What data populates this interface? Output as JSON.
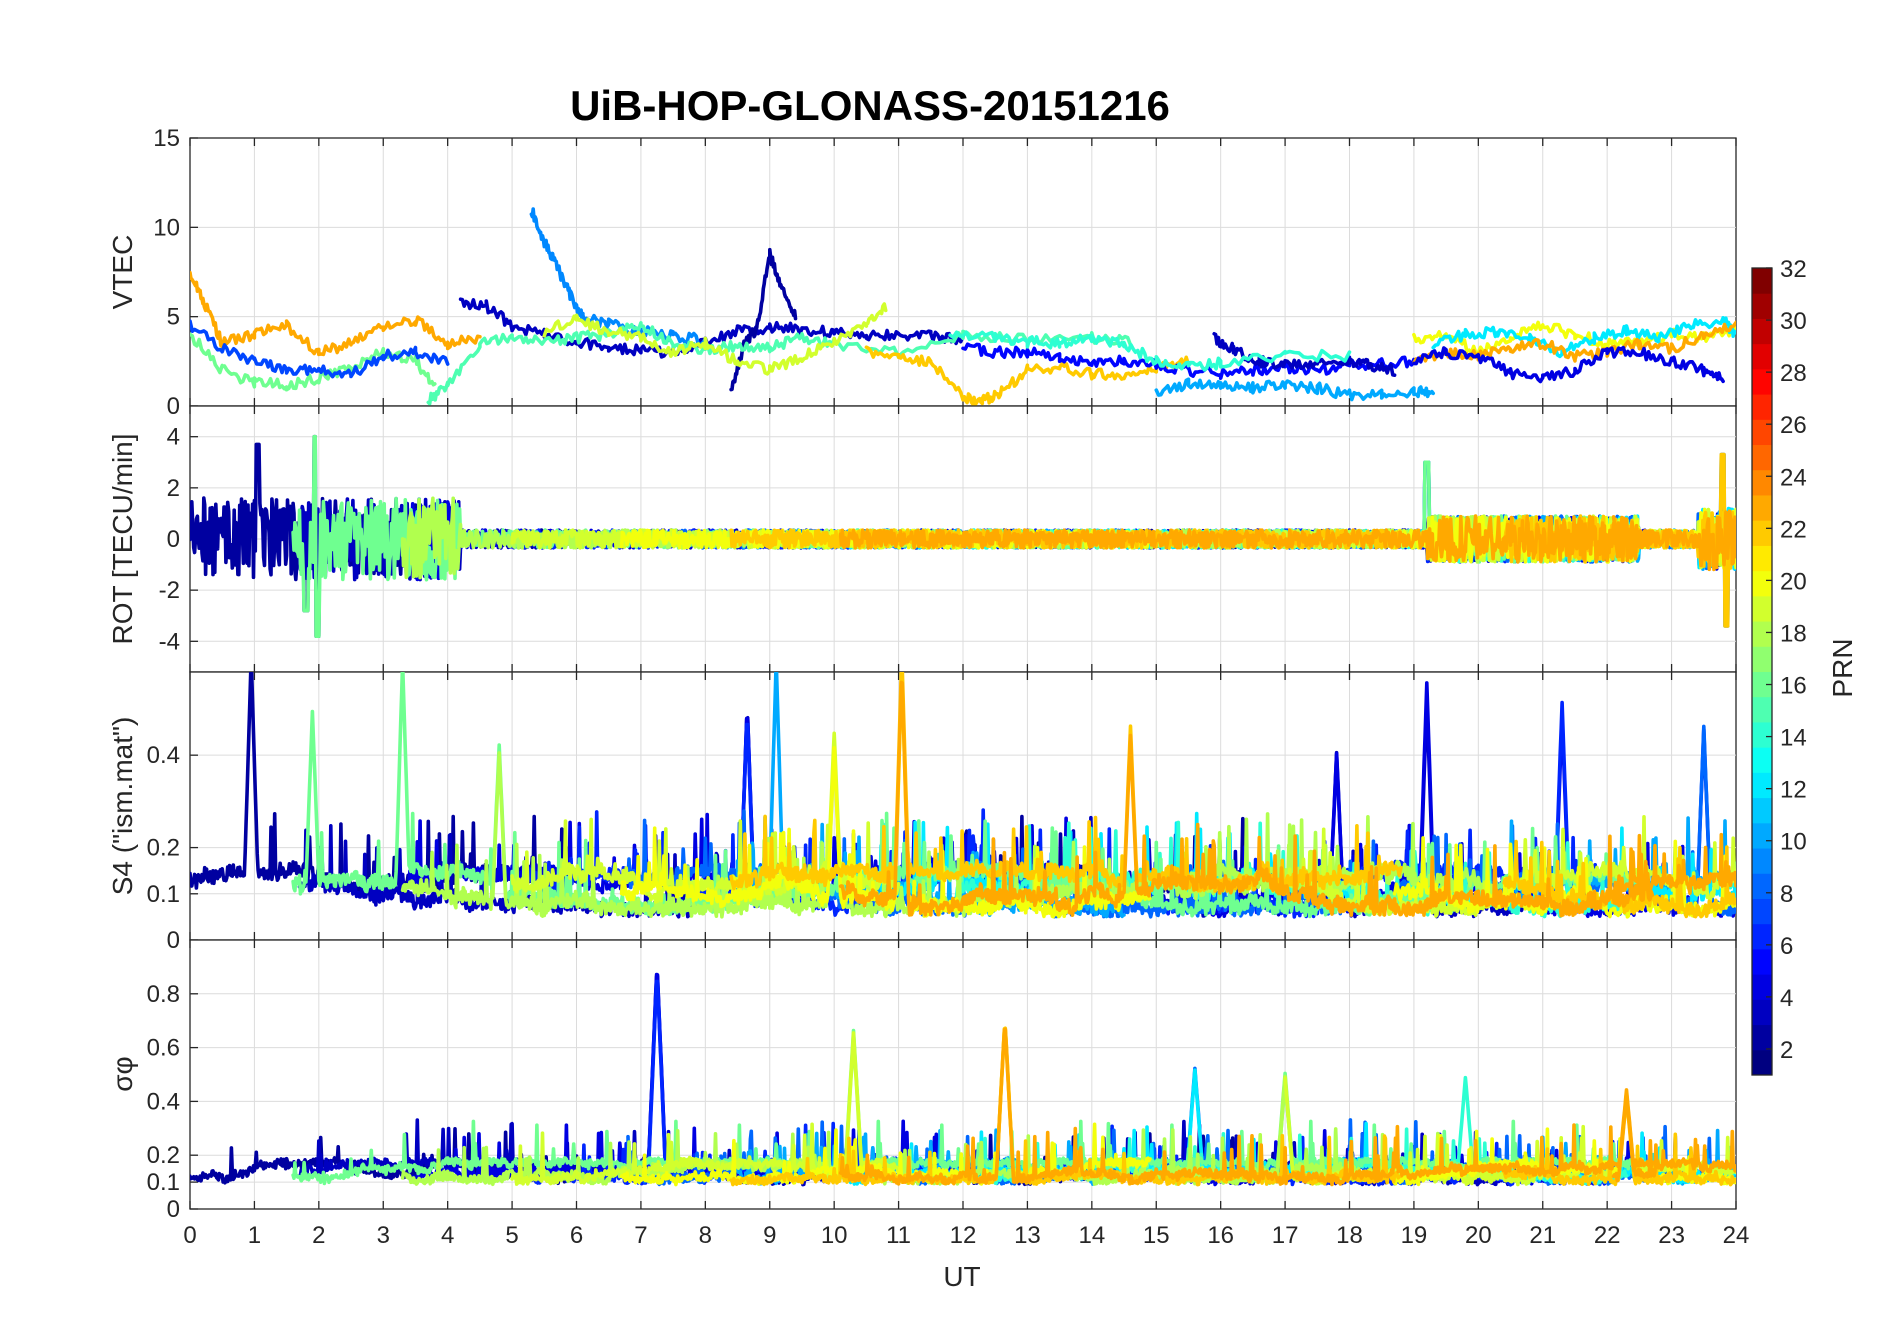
{
  "chart_data": {
    "type": "line",
    "title": "UiB-HOP-GLONASS-20151216",
    "xlabel": "UT",
    "xlim": [
      0,
      24
    ],
    "xticks": [
      "0",
      "1",
      "2",
      "3",
      "4",
      "5",
      "6",
      "7",
      "8",
      "9",
      "10",
      "11",
      "12",
      "13",
      "14",
      "15",
      "16",
      "17",
      "18",
      "19",
      "20",
      "21",
      "22",
      "23",
      "24"
    ],
    "colorbar": {
      "label": "PRN",
      "range": [
        1,
        32
      ],
      "ticks": [
        "2",
        "4",
        "6",
        "8",
        "10",
        "12",
        "14",
        "16",
        "18",
        "20",
        "22",
        "24",
        "26",
        "28",
        "30",
        "32"
      ],
      "colormap": "jet"
    },
    "panels": [
      {
        "id": "vtec",
        "ylabel": "VTEC",
        "ylim": [
          0,
          15
        ],
        "yticks": [
          "0",
          "5",
          "10",
          "15"
        ],
        "series": [
          {
            "prn": 3,
            "x": [
              4.2,
              4.6,
              5.0,
              5.5,
              6.0,
              6.5,
              7.0,
              7.5,
              8.0,
              8.5,
              9.0,
              9.5,
              10.0,
              10.5,
              11.0,
              11.5,
              12.0
            ],
            "y": [
              5.8,
              5.6,
              4.5,
              4.0,
              3.6,
              3.3,
              3.1,
              3.0,
              3.5,
              4.2,
              4.4,
              4.3,
              4.1,
              4.0,
              4.0,
              3.9,
              3.7
            ]
          },
          {
            "prn": 2,
            "x": [
              8.4,
              8.6,
              8.8,
              9.0,
              9.2,
              9.4
            ],
            "y": [
              0.8,
              3.5,
              4.3,
              8.5,
              6.5,
              5.0
            ]
          },
          {
            "prn": 9,
            "x": [
              5.3,
              5.5,
              5.7,
              5.9,
              6.1,
              6.5,
              7.0,
              7.5,
              8.0
            ],
            "y": [
              11.0,
              9.2,
              7.8,
              6.2,
              5.0,
              4.6,
              4.2,
              3.9,
              3.7
            ]
          },
          {
            "prn": 16,
            "x": [
              0.0,
              0.5,
              1.0,
              1.5,
              2.0,
              2.5,
              3.0,
              3.5,
              3.8
            ],
            "y": [
              4.0,
              2.0,
              1.3,
              1.2,
              1.5,
              2.2,
              3.0,
              2.5,
              1.2
            ]
          },
          {
            "prn": 23,
            "x": [
              0.0,
              0.2,
              0.5,
              1.0,
              1.5,
              2.0,
              2.5,
              3.0,
              3.5,
              4.0,
              4.5
            ],
            "y": [
              7.5,
              6.0,
              3.5,
              4.0,
              4.5,
              3.0,
              3.5,
              4.5,
              4.8,
              3.5,
              3.8
            ]
          },
          {
            "prn": 7,
            "x": [
              0.0,
              0.5,
              1.0,
              1.5,
              2.0,
              2.5,
              3.0,
              3.5,
              4.0
            ],
            "y": [
              4.5,
              3.2,
              2.5,
              2.0,
              2.0,
              1.8,
              2.8,
              3.0,
              2.5
            ]
          },
          {
            "prn": 15,
            "x": [
              3.7,
              4.0,
              4.5,
              5.0,
              5.5,
              6.0,
              6.5,
              7.0,
              7.5,
              8.0,
              8.5,
              9.0,
              9.5,
              10.0,
              11.0,
              12.0,
              13.0,
              14.0,
              14.6
            ],
            "y": [
              0.3,
              1.2,
              3.5,
              3.8,
              3.6,
              3.8,
              4.0,
              4.5,
              3.5,
              3.2,
              3.4,
              3.3,
              3.8,
              3.5,
              3.0,
              4.0,
              3.8,
              3.8,
              3.6
            ]
          },
          {
            "prn": 19,
            "x": [
              5.5,
              6.0,
              6.5,
              7.0,
              7.5,
              8.0,
              8.5,
              9.0,
              9.5,
              10.0,
              10.5,
              10.8
            ],
            "y": [
              4.2,
              4.8,
              4.2,
              3.8,
              3.0,
              3.5,
              2.5,
              2.0,
              2.8,
              3.5,
              4.5,
              5.5
            ]
          },
          {
            "prn": 22,
            "x": [
              10.5,
              11.0,
              11.5,
              12.0,
              12.3,
              12.6,
              13.0,
              13.5,
              14.0,
              14.5,
              15.0,
              15.5
            ],
            "y": [
              3.0,
              2.6,
              2.5,
              0.5,
              0.3,
              0.8,
              2.0,
              2.2,
              1.8,
              1.8,
              2.2,
              2.5
            ]
          },
          {
            "prn": 5,
            "x": [
              12.0,
              12.5,
              13.0,
              13.5,
              14.0,
              14.5,
              15.0,
              15.5,
              16.0,
              16.5,
              17.0,
              17.5,
              18.0,
              18.5,
              19.0
            ],
            "y": [
              3.3,
              3.0,
              3.0,
              2.7,
              2.5,
              2.5,
              2.3,
              2.0,
              1.8,
              2.0,
              2.2,
              2.0,
              2.3,
              2.4,
              2.5
            ]
          },
          {
            "prn": 3,
            "x": [
              15.9,
              16.2,
              16.6,
              17.0,
              17.5,
              18.0,
              18.3,
              18.7
            ],
            "y": [
              3.8,
              3.2,
              2.5,
              2.3,
              2.4,
              2.5,
              2.3,
              2.0
            ]
          },
          {
            "prn": 10,
            "x": [
              15.0,
              15.5,
              16.0,
              16.5,
              17.0,
              17.5,
              18.0,
              18.5,
              19.0,
              19.3
            ],
            "y": [
              0.8,
              1.2,
              1.2,
              1.0,
              1.2,
              1.0,
              0.6,
              0.6,
              0.8,
              0.7
            ]
          },
          {
            "prn": 20,
            "x": [
              19.0,
              19.5,
              20.0,
              20.5,
              21.0,
              21.5,
              22.0,
              22.5,
              23.0,
              23.5,
              24.0
            ],
            "y": [
              3.8,
              4.0,
              3.0,
              3.8,
              4.5,
              4.0,
              3.5,
              3.5,
              4.0,
              3.8,
              4.2
            ]
          },
          {
            "prn": 12,
            "x": [
              19.3,
              19.8,
              20.3,
              20.8,
              21.3,
              21.8,
              22.3,
              22.8,
              23.3,
              23.8,
              24.0
            ],
            "y": [
              3.5,
              4.0,
              4.2,
              3.8,
              3.0,
              3.8,
              4.2,
              3.8,
              4.5,
              4.8,
              4.0
            ]
          },
          {
            "prn": 23,
            "x": [
              19.0,
              19.5,
              20.0,
              20.5,
              21.0,
              21.5,
              22.0,
              22.5,
              23.0,
              23.5,
              24.0
            ],
            "y": [
              2.5,
              3.0,
              2.8,
              3.2,
              3.5,
              2.8,
              3.0,
              3.5,
              3.2,
              4.0,
              4.5
            ]
          },
          {
            "prn": 4,
            "x": [
              19.0,
              19.5,
              20.0,
              20.5,
              21.0,
              21.5,
              22.0,
              22.5,
              23.0,
              23.5,
              23.8
            ],
            "y": [
              2.5,
              3.0,
              2.8,
              1.8,
              1.5,
              2.0,
              3.0,
              3.0,
              2.5,
              2.0,
              1.6
            ]
          },
          {
            "prn": 14,
            "x": [
              11.8,
              12.5,
              13.0,
              13.5,
              14.0,
              14.5,
              15.0,
              15.5,
              16.0,
              17.0,
              18.0
            ],
            "y": [
              4.0,
              3.8,
              3.6,
              3.5,
              3.8,
              3.5,
              2.5,
              2.2,
              2.4,
              2.8,
              2.8
            ]
          }
        ]
      },
      {
        "id": "rot",
        "ylabel": "ROT [TECU/min]",
        "ylim": [
          -5.2,
          5.2
        ],
        "yticks": [
          "-4",
          "-2",
          "0",
          "2",
          "4"
        ]
      },
      {
        "id": "s4",
        "ylabel": "S4 (\"ism.mat\")",
        "ylim": [
          0,
          0.58
        ],
        "yticks": [
          "0",
          "0.1",
          "0.2",
          "0.4"
        ]
      },
      {
        "id": "sigma",
        "ylabel": "σφ",
        "ylim": [
          0,
          1.0
        ],
        "yticks": [
          "0",
          "0.1",
          "0.2",
          "0.4",
          "0.6",
          "0.8"
        ]
      }
    ]
  }
}
